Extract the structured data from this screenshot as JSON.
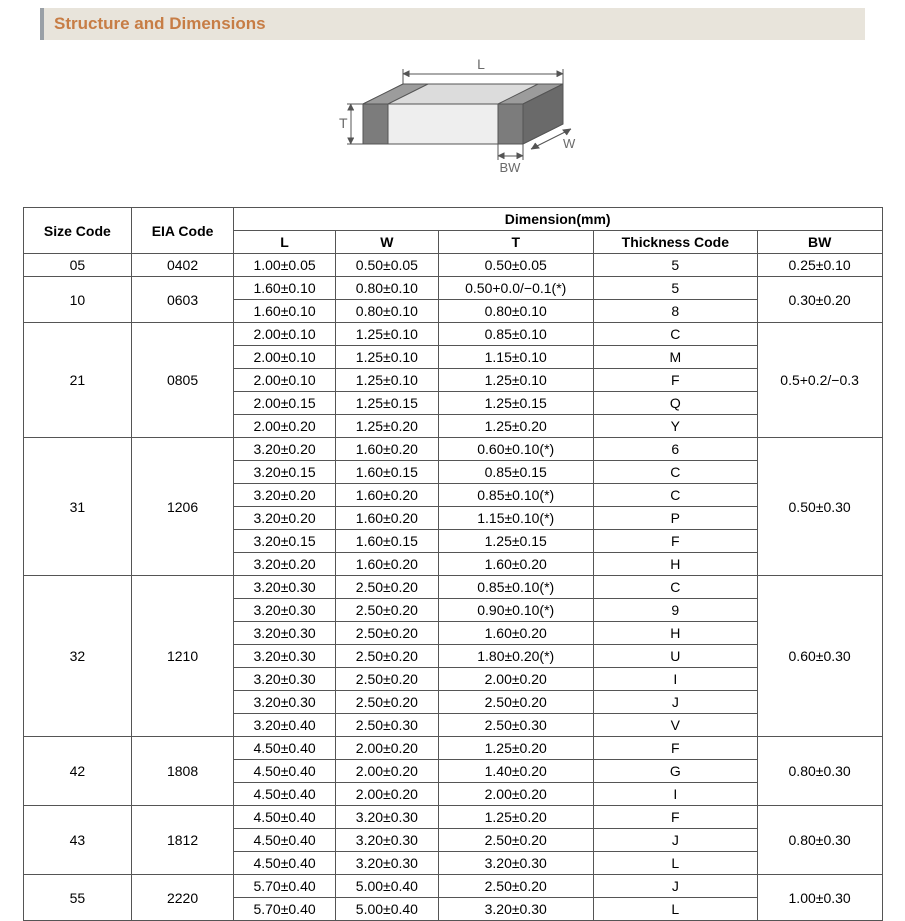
{
  "title": "Structure and Dimensions",
  "title_color": "#c77d45",
  "title_bg": "#e8e4db",
  "title_border": "#9aa0a6",
  "diagram": {
    "labels": {
      "L": "L",
      "W": "W",
      "T": "T",
      "BW": "BW"
    },
    "stroke": "#545454",
    "fill_top": "#dcdcdc",
    "fill_side": "#bfbfbf",
    "fill_front": "#eeeeee",
    "band_fill": "#7c7c7c",
    "text_color": "#6a6a6a"
  },
  "table": {
    "headers": {
      "size": "Size Code",
      "eia": "EIA Code",
      "dim": "Dimension(mm)",
      "L": "L",
      "W": "W",
      "T": "T",
      "thick": "Thickness  Code",
      "BW": "BW"
    },
    "groups": [
      {
        "size": "05",
        "eia": "0402",
        "bw": "0.25±0.10",
        "rows": [
          {
            "L": "1.00±0.05",
            "W": "0.50±0.05",
            "T": "0.50±0.05",
            "code": "5"
          }
        ]
      },
      {
        "size": "10",
        "eia": "0603",
        "bw": "0.30±0.20",
        "rows": [
          {
            "L": "1.60±0.10",
            "W": "0.80±0.10",
            "T": "0.50+0.0/−0.1(*)",
            "code": "5"
          },
          {
            "L": "1.60±0.10",
            "W": "0.80±0.10",
            "T": "0.80±0.10",
            "code": "8"
          }
        ]
      },
      {
        "size": "21",
        "eia": "0805",
        "bw": "0.5+0.2/−0.3",
        "rows": [
          {
            "L": "2.00±0.10",
            "W": "1.25±0.10",
            "T": "0.85±0.10",
            "code": "C"
          },
          {
            "L": "2.00±0.10",
            "W": "1.25±0.10",
            "T": "1.15±0.10",
            "code": "M"
          },
          {
            "L": "2.00±0.10",
            "W": "1.25±0.10",
            "T": "1.25±0.10",
            "code": "F"
          },
          {
            "L": "2.00±0.15",
            "W": "1.25±0.15",
            "T": "1.25±0.15",
            "code": "Q"
          },
          {
            "L": "2.00±0.20",
            "W": "1.25±0.20",
            "T": "1.25±0.20",
            "code": "Y"
          }
        ]
      },
      {
        "size": "31",
        "eia": "1206",
        "bw": "0.50±0.30",
        "rows": [
          {
            "L": "3.20±0.20",
            "W": "1.60±0.20",
            "T": "0.60±0.10(*)",
            "code": "6"
          },
          {
            "L": "3.20±0.15",
            "W": "1.60±0.15",
            "T": "0.85±0.15",
            "code": "C"
          },
          {
            "L": "3.20±0.20",
            "W": "1.60±0.20",
            "T": "0.85±0.10(*)",
            "code": "C"
          },
          {
            "L": "3.20±0.20",
            "W": "1.60±0.20",
            "T": "1.15±0.10(*)",
            "code": "P"
          },
          {
            "L": "3.20±0.15",
            "W": "1.60±0.15",
            "T": "1.25±0.15",
            "code": "F"
          },
          {
            "L": "3.20±0.20",
            "W": "1.60±0.20",
            "T": "1.60±0.20",
            "code": "H"
          }
        ]
      },
      {
        "size": "32",
        "eia": "1210",
        "bw": "0.60±0.30",
        "rows": [
          {
            "L": "3.20±0.30",
            "W": "2.50±0.20",
            "T": "0.85±0.10(*)",
            "code": "C"
          },
          {
            "L": "3.20±0.30",
            "W": "2.50±0.20",
            "T": "0.90±0.10(*)",
            "code": "9"
          },
          {
            "L": "3.20±0.30",
            "W": "2.50±0.20",
            "T": "1.60±0.20",
            "code": "H"
          },
          {
            "L": "3.20±0.30",
            "W": "2.50±0.20",
            "T": "1.80±0.20(*)",
            "code": "U"
          },
          {
            "L": "3.20±0.30",
            "W": "2.50±0.20",
            "T": "2.00±0.20",
            "code": "I"
          },
          {
            "L": "3.20±0.30",
            "W": "2.50±0.20",
            "T": "2.50±0.20",
            "code": "J"
          },
          {
            "L": "3.20±0.40",
            "W": "2.50±0.30",
            "T": "2.50±0.30",
            "code": "V"
          }
        ]
      },
      {
        "size": "42",
        "eia": "1808",
        "bw": "0.80±0.30",
        "rows": [
          {
            "L": "4.50±0.40",
            "W": "2.00±0.20",
            "T": "1.25±0.20",
            "code": "F"
          },
          {
            "L": "4.50±0.40",
            "W": "2.00±0.20",
            "T": "1.40±0.20",
            "code": "G"
          },
          {
            "L": "4.50±0.40",
            "W": "2.00±0.20",
            "T": "2.00±0.20",
            "code": "I"
          }
        ]
      },
      {
        "size": "43",
        "eia": "1812",
        "bw": "0.80±0.30",
        "rows": [
          {
            "L": "4.50±0.40",
            "W": "3.20±0.30",
            "T": "1.25±0.20",
            "code": "F"
          },
          {
            "L": "4.50±0.40",
            "W": "3.20±0.30",
            "T": "2.50±0.20",
            "code": "J"
          },
          {
            "L": "4.50±0.40",
            "W": "3.20±0.30",
            "T": "3.20±0.30",
            "code": "L"
          }
        ]
      },
      {
        "size": "55",
        "eia": "2220",
        "bw": "1.00±0.30",
        "rows": [
          {
            "L": "5.70±0.40",
            "W": "5.00±0.40",
            "T": "2.50±0.20",
            "code": "J"
          },
          {
            "L": "5.70±0.40",
            "W": "5.00±0.40",
            "T": "3.20±0.30",
            "code": "L"
          }
        ]
      }
    ]
  }
}
